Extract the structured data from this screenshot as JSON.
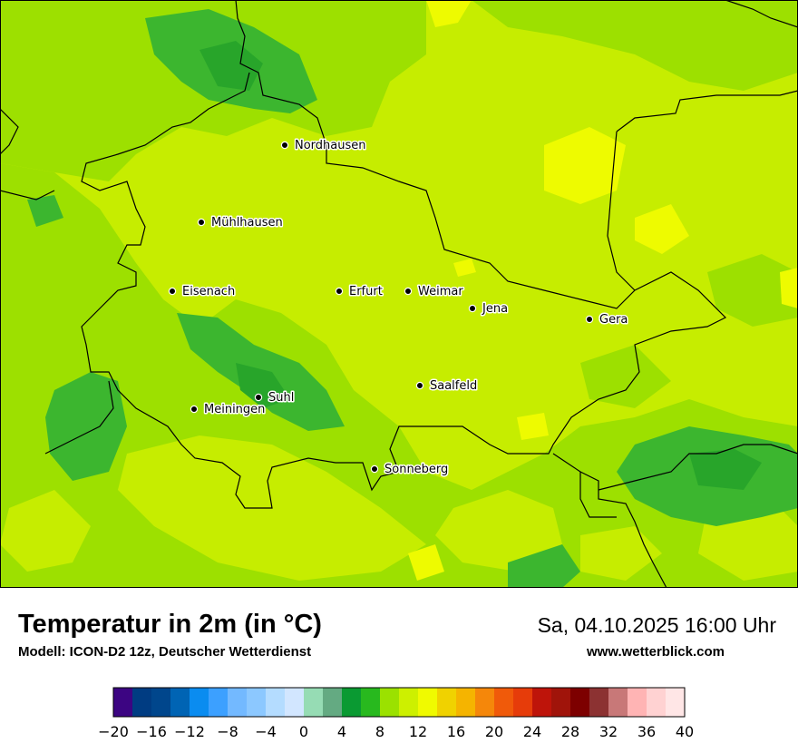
{
  "header": {
    "title": "Temperatur in 2m (in °C)",
    "subtitle": "Modell: ICON-D2 12z, Deutscher Wetterdienst",
    "datetime": "Sa, 04.10.2025 16:00 Uhr",
    "website": "www.wetterblick.com"
  },
  "map": {
    "region_colors": {
      "base": "#cbef00",
      "warm_patch": "#eefb00",
      "mild": "#9de000",
      "cool": "#3cb62f"
    },
    "cities": [
      "Nordhausen",
      "Mühlhausen",
      "Eisenach",
      "Erfurt",
      "Weimar",
      "Jena",
      "Gera",
      "Saalfeld",
      "Suhl",
      "Meiningen",
      "Sonneberg"
    ]
  },
  "color_scale": {
    "unit": "°C",
    "min": -20,
    "max": 40,
    "step": 2,
    "tick_labels": [
      "−20",
      "−16",
      "−12",
      "−8",
      "−4",
      "0",
      "4",
      "8",
      "12",
      "16",
      "20",
      "24",
      "28",
      "32",
      "36",
      "40"
    ],
    "colors": [
      "#3c0582",
      "#003c82",
      "#00468c",
      "#0064b4",
      "#0a8cf0",
      "#3ca0ff",
      "#73b9ff",
      "#8cc8ff",
      "#b4dcff",
      "#d2e6ff",
      "#96dcb4",
      "#64aa82",
      "#0a9a32",
      "#28b91e",
      "#9be100",
      "#cdf000",
      "#f0fa00",
      "#f0d200",
      "#f5b400",
      "#f5870a",
      "#f05a0a",
      "#e63c0a",
      "#be140a",
      "#a0140a",
      "#7d0000",
      "#8c3232",
      "#c87878",
      "#ffb4b4",
      "#ffd2d2",
      "#ffe6e6"
    ]
  }
}
